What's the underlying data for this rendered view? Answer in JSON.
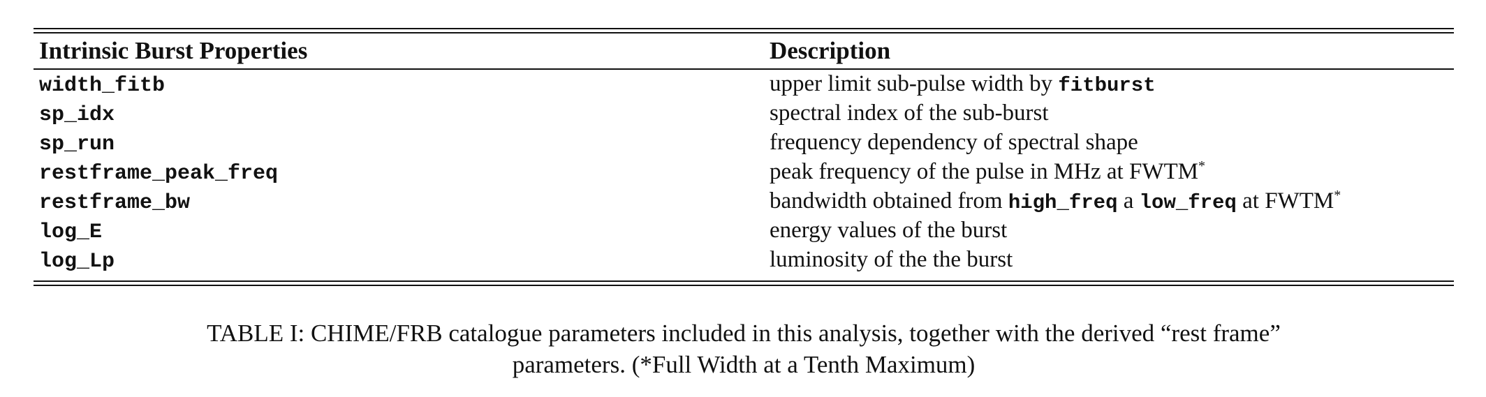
{
  "table": {
    "headers": {
      "name": "Intrinsic Burst Properties",
      "description": "Description"
    },
    "rows": [
      {
        "name": "width_fitb",
        "desc": [
          {
            "t": "upper limit sub-pulse width by "
          },
          {
            "t": "fitburst",
            "code": true
          }
        ]
      },
      {
        "name": "sp_idx",
        "desc": [
          {
            "t": "spectral index of the sub-burst"
          }
        ]
      },
      {
        "name": "sp_run",
        "desc": [
          {
            "t": "frequency dependency of spectral shape"
          }
        ]
      },
      {
        "name": "restframe_peak_freq",
        "desc": [
          {
            "t": "peak frequency of the pulse in MHz at FWTM"
          },
          {
            "t": "*",
            "sup": true
          }
        ]
      },
      {
        "name": "restframe_bw",
        "desc": [
          {
            "t": "bandwidth obtained from "
          },
          {
            "t": "high_freq",
            "code": true
          },
          {
            "t": " a "
          },
          {
            "t": "low_freq",
            "code": true
          },
          {
            "t": " at FWTM"
          },
          {
            "t": "*",
            "sup": true
          }
        ]
      },
      {
        "name": "log_E",
        "desc": [
          {
            "t": "energy values of the burst"
          }
        ]
      },
      {
        "name": "log_Lp",
        "desc": [
          {
            "t": "luminosity of the the burst"
          }
        ]
      }
    ]
  },
  "caption": {
    "line1": "TABLE I:  CHIME/FRB catalogue parameters included in this analysis, together with the derived “rest frame”",
    "line2": "parameters. (*Full Width at a Tenth Maximum)"
  }
}
